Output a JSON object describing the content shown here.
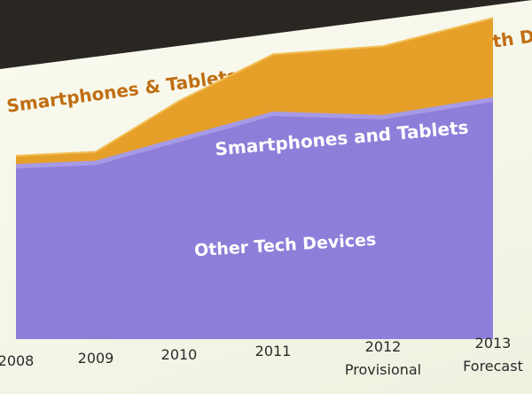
{
  "title": "Smartphones & Tablets REMAIN THE Global Growth Drivers",
  "colors": {
    "other_tech": "#8f7ed9",
    "other_tech_edge": "#a69ae6",
    "smartphones": "#e6a02a",
    "smartphones_edge": "#f2be55",
    "area_label": "#ffffff",
    "tick_label": "#2a2a2a"
  },
  "chart_data": {
    "type": "area",
    "stacked": true,
    "title": "Smartphones & Tablets REMAIN THE Global Growth Drivers",
    "x": [
      "2008",
      "2009",
      "2010",
      "2011",
      "2012",
      "2013"
    ],
    "x_sublabels": [
      "",
      "",
      "",
      "",
      "Provisional",
      "Forecast"
    ],
    "series": [
      {
        "name": "Other Tech Devices",
        "values": [
          100,
          96,
          103,
          110,
          103,
          106
        ]
      },
      {
        "name": "Smartphones and Tablets",
        "values": [
          6,
          6,
          20,
          29,
          33,
          36
        ]
      }
    ],
    "ylim": [
      0,
      150
    ],
    "grid": false,
    "legend": "none",
    "y_axis_labels": false
  }
}
